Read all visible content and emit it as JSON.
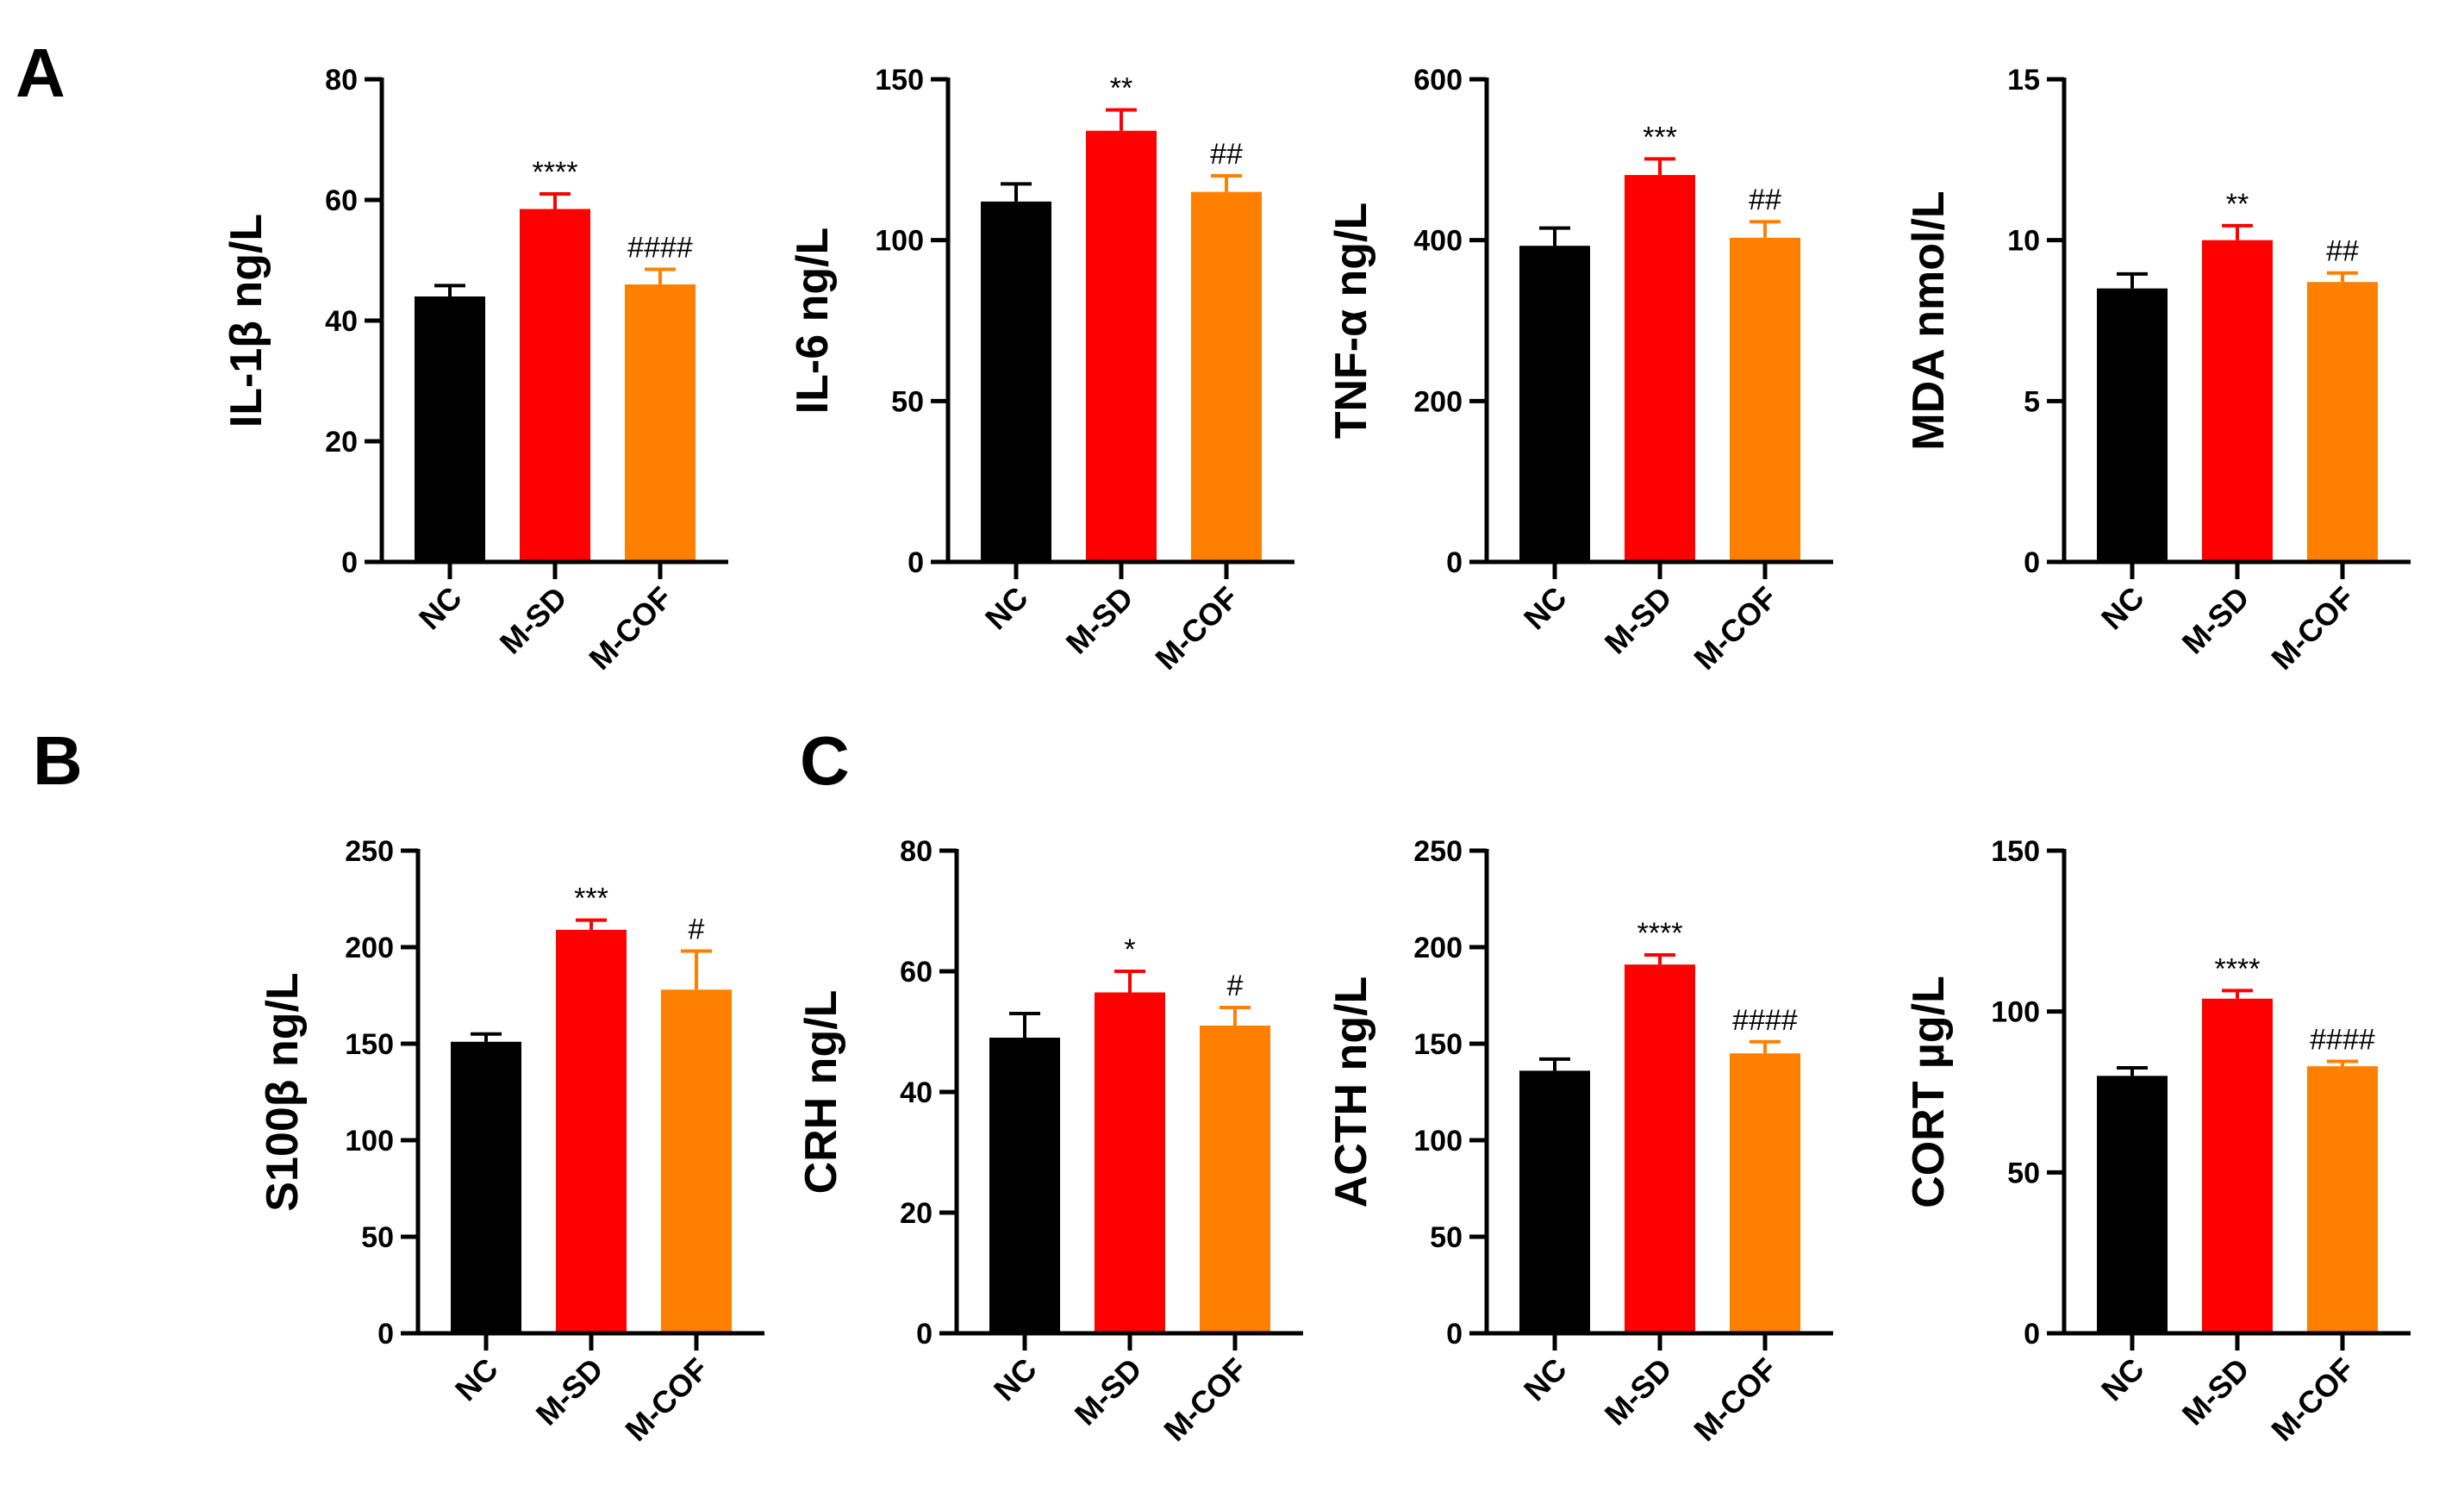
{
  "groups": [
    "NC",
    "M-SD",
    "M-COF"
  ],
  "colors": {
    "NC": "#000000",
    "M-SD": "#ff0000",
    "M-COF": "#ff8000",
    "axis": "#000000"
  },
  "panel_labels": [
    "A",
    "B",
    "C"
  ],
  "chart_data": [
    {
      "type": "bar",
      "ylabel": "IL-1β ng/L",
      "ylim": [
        0,
        80
      ],
      "yticks": [
        0,
        20,
        40,
        60,
        80
      ],
      "ytick_labels": [
        "0",
        "20",
        "40",
        "60",
        "80"
      ],
      "categories": [
        "NC",
        "M-SD",
        "M-COF"
      ],
      "values": [
        44,
        58.5,
        46
      ],
      "errors": [
        1.8,
        2.5,
        2.5
      ],
      "annotations": [
        "",
        "****",
        "####"
      ]
    },
    {
      "type": "bar",
      "ylabel": "IL-6 ng/L",
      "ylim": [
        0,
        150
      ],
      "yticks": [
        0,
        50,
        100,
        150
      ],
      "ytick_labels": [
        "0",
        "50",
        "100",
        "150"
      ],
      "categories": [
        "NC",
        "M-SD",
        "M-COF"
      ],
      "values": [
        112,
        134,
        115
      ],
      "errors": [
        5.5,
        6.5,
        5
      ],
      "annotations": [
        "",
        "**",
        "##"
      ]
    },
    {
      "type": "bar",
      "ylabel": "TNF-α ng/L",
      "ylim": [
        0,
        600
      ],
      "yticks": [
        0,
        200,
        400,
        600
      ],
      "ytick_labels": [
        "0",
        "200",
        "400",
        "600"
      ],
      "categories": [
        "NC",
        "M-SD",
        "M-COF"
      ],
      "values": [
        393,
        481,
        403
      ],
      "errors": [
        22,
        20,
        20
      ],
      "annotations": [
        "",
        "***",
        "##"
      ]
    },
    {
      "type": "bar",
      "ylabel": "MDA nmol/L",
      "ylim": [
        0,
        15
      ],
      "yticks": [
        0,
        5,
        10,
        15
      ],
      "ytick_labels": [
        "0",
        "5",
        "10",
        "15"
      ],
      "categories": [
        "NC",
        "M-SD",
        "M-COF"
      ],
      "values": [
        8.5,
        10,
        8.7
      ],
      "errors": [
        0.45,
        0.45,
        0.28
      ],
      "annotations": [
        "",
        "**",
        "##"
      ]
    },
    {
      "type": "bar",
      "ylabel": "S100β  ng/L",
      "ylim": [
        0,
        250
      ],
      "yticks": [
        0,
        50,
        100,
        150,
        200,
        250
      ],
      "ytick_labels": [
        "0",
        "50",
        "100",
        "150",
        "200",
        "250"
      ],
      "categories": [
        "NC",
        "M-SD",
        "M-COF"
      ],
      "values": [
        151,
        209,
        178
      ],
      "errors": [
        4,
        5,
        20
      ],
      "annotations": [
        "",
        "***",
        "#"
      ]
    },
    {
      "type": "bar",
      "ylabel": "CRH ng/L",
      "ylim": [
        0,
        80
      ],
      "yticks": [
        0,
        20,
        40,
        60,
        80
      ],
      "ytick_labels": [
        "0",
        "20",
        "40",
        "60",
        "80"
      ],
      "categories": [
        "NC",
        "M-SD",
        "M-COF"
      ],
      "values": [
        49,
        56.5,
        51
      ],
      "errors": [
        4,
        3.5,
        3
      ],
      "annotations": [
        "",
        "*",
        "#"
      ]
    },
    {
      "type": "bar",
      "ylabel": "ACTH ng/L",
      "ylim": [
        0,
        250
      ],
      "yticks": [
        0,
        50,
        100,
        150,
        200,
        250
      ],
      "ytick_labels": [
        "0",
        "50",
        "100",
        "150",
        "200",
        "250"
      ],
      "categories": [
        "NC",
        "M-SD",
        "M-COF"
      ],
      "values": [
        136,
        191,
        145
      ],
      "errors": [
        6,
        5,
        6
      ],
      "annotations": [
        "",
        "****",
        "####"
      ]
    },
    {
      "type": "bar",
      "ylabel": "CORT µg/L",
      "ylim": [
        0,
        150
      ],
      "yticks": [
        0,
        50,
        100,
        150
      ],
      "ytick_labels": [
        "0",
        "50",
        "100",
        "150"
      ],
      "categories": [
        "NC",
        "M-SD",
        "M-COF"
      ],
      "values": [
        80,
        104,
        83
      ],
      "errors": [
        2.5,
        2.5,
        1.5
      ],
      "annotations": [
        "",
        "****",
        "####"
      ]
    }
  ]
}
